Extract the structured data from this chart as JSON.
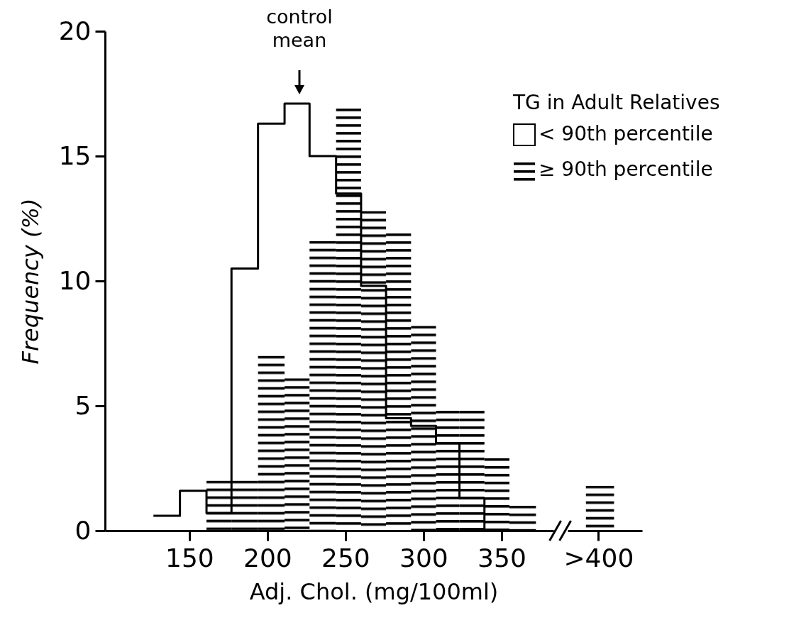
{
  "chart_data": {
    "type": "histogram",
    "xlabel": "Adj. Chol. (mg/100ml)",
    "ylabel": "Frequency (%)",
    "legend_title": "TG in Adult Relatives",
    "legend": "right",
    "xlim": [
      96,
      440
    ],
    "xticks": [
      150,
      200,
      250,
      300,
      350,
      {
        "value": 412,
        "label": ">400"
      }
    ],
    "ylim": [
      0,
      20
    ],
    "yticks": [
      0,
      5,
      10,
      15,
      20
    ],
    "grid": false,
    "bins": [
      161,
      177,
      194,
      211,
      227,
      244,
      260,
      276,
      292,
      308,
      323,
      339,
      355,
      372,
      404,
      422
    ],
    "series": [
      {
        "type": "step",
        "name": "< 90th percentile",
        "color": "#000000",
        "x": [
          127,
          144,
          161,
          177,
          194,
          211,
          227,
          244,
          260,
          276,
          292,
          308,
          323,
          339
        ],
        "values": [
          0.6,
          1.6,
          0.7,
          10.5,
          16.3,
          17.1,
          15.0,
          13.5,
          9.8,
          4.5,
          4.2,
          3.5,
          1.3,
          0
        ]
      },
      {
        "type": "histogram",
        "name": "≥ 90th percentile",
        "color": "#000000",
        "values": [
          2.0,
          2.0,
          7.0,
          6.1,
          11.6,
          16.9,
          12.8,
          11.9,
          8.2,
          4.8,
          4.8,
          2.9,
          1.0,
          null,
          1.8
        ]
      }
    ],
    "annotations": [
      "control mean"
    ]
  }
}
